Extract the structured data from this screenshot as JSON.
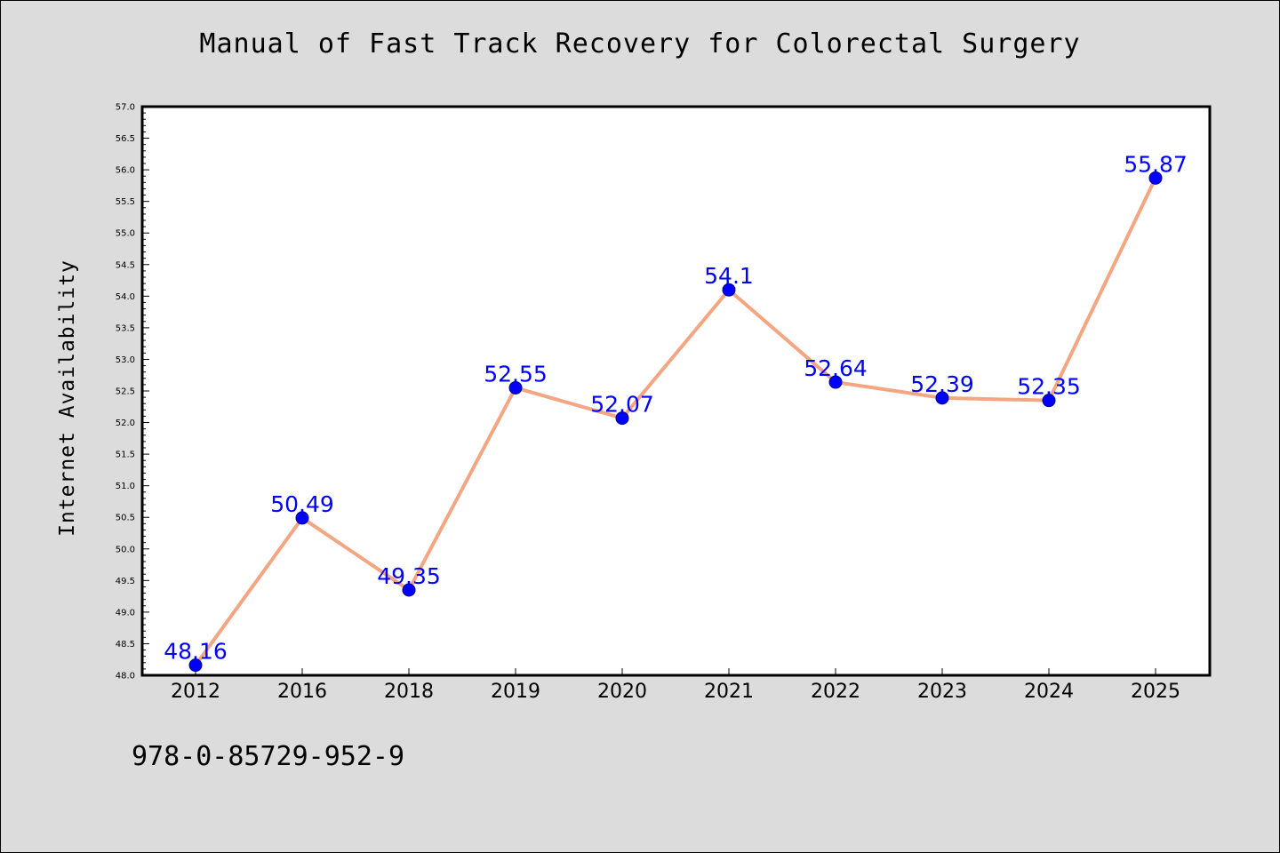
{
  "page": {
    "title": "Manual of Fast Track Recovery for Colorectal Surgery",
    "isbn": "978-0-85729-952-9"
  },
  "chart_data": {
    "type": "line",
    "title": "Manual of Fast Track Recovery for Colorectal Surgery",
    "xlabel": "",
    "ylabel": "Internet Availability",
    "categories": [
      "2012",
      "2016",
      "2018",
      "2019",
      "2020",
      "2021",
      "2022",
      "2023",
      "2024",
      "2025"
    ],
    "series": [
      {
        "values": [
          48.16,
          50.49,
          49.35,
          52.55,
          52.07,
          54.1,
          52.64,
          52.39,
          52.35,
          55.87
        ]
      }
    ],
    "data_labels": [
      "48.16",
      "50.49",
      "49.35",
      "52.55",
      "52.07",
      "54.1",
      "52.64",
      "52.39",
      "52.35",
      "55.87"
    ],
    "ylim": [
      48.0,
      57.0
    ],
    "yticks": [
      "48.0",
      "48.5",
      "49.0",
      "49.5",
      "50.0",
      "50.5",
      "51.0",
      "51.5",
      "52.0",
      "52.5",
      "53.0",
      "53.5",
      "54.0",
      "54.5",
      "55.0",
      "55.5",
      "56.0",
      "56.5",
      "57.0"
    ],
    "grid": false,
    "legend": "none",
    "colors": {
      "line": "#f4a582",
      "marker": "#0000ff",
      "marker_edge": "#00008b",
      "data_label": "#0000ff",
      "plot_background": "#ffffff",
      "figure_background": "#dcdcdc"
    }
  }
}
